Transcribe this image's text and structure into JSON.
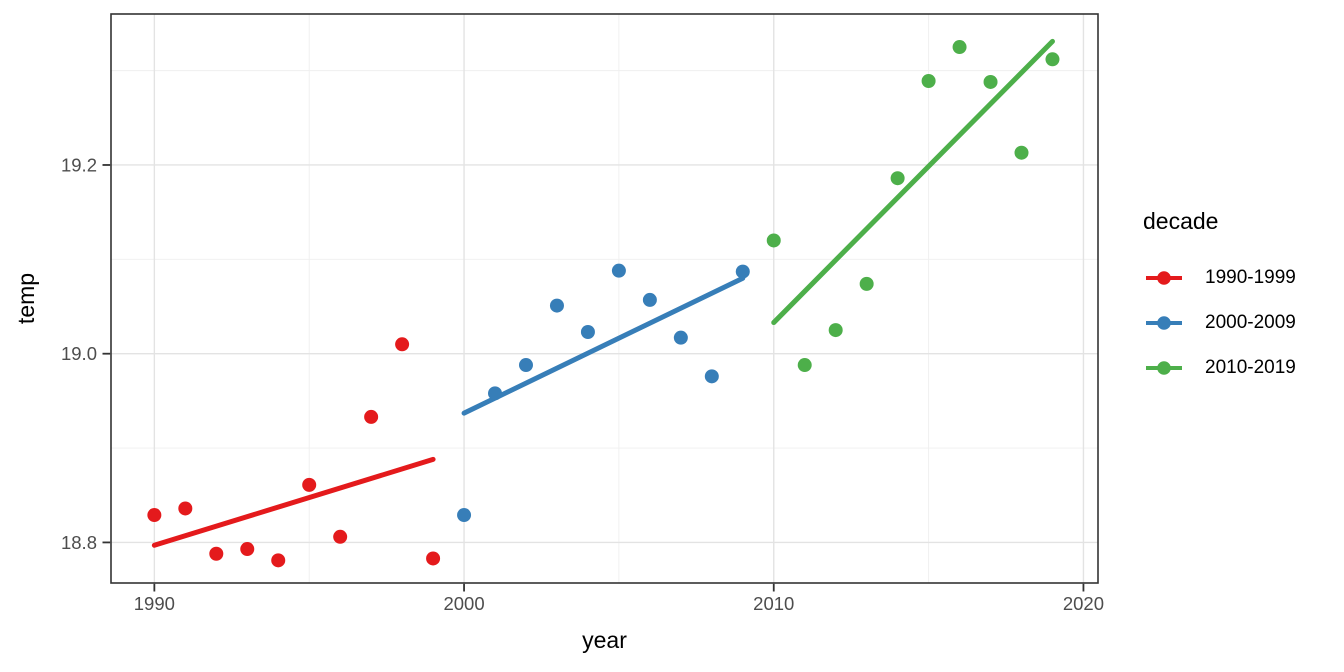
{
  "chart_data": {
    "type": "scatter",
    "title": "",
    "xlabel": "year",
    "ylabel": "temp",
    "x_major_ticks": [
      1990,
      2000,
      2010,
      2020
    ],
    "x_minor_gridlines": [
      1995,
      2005,
      2015
    ],
    "y_major_ticks": [
      18.8,
      19.0,
      19.2
    ],
    "y_minor_gridlines": [
      18.9,
      19.1,
      19.3
    ],
    "xlim": [
      1988.6,
      2020.47
    ],
    "ylim": [
      18.757,
      19.36
    ],
    "grid": true,
    "legend_position": "right",
    "legend": {
      "title": "decade"
    },
    "series": [
      {
        "name": "1990-1999",
        "color": "#E41A1C",
        "x": [
          1990,
          1991,
          1992,
          1993,
          1994,
          1995,
          1996,
          1997,
          1998,
          1999
        ],
        "y": [
          18.829,
          18.836,
          18.788,
          18.793,
          18.781,
          18.861,
          18.806,
          18.933,
          19.01,
          18.783
        ],
        "trend": {
          "x1": 1990,
          "y1": 18.797,
          "x2": 1999,
          "y2": 18.888
        }
      },
      {
        "name": "2000-2009",
        "color": "#377EB8",
        "x": [
          2000,
          2001,
          2002,
          2003,
          2004,
          2005,
          2006,
          2007,
          2008,
          2009
        ],
        "y": [
          18.829,
          18.958,
          18.988,
          19.051,
          19.023,
          19.088,
          19.057,
          19.017,
          18.976,
          19.087
        ],
        "trend": {
          "x1": 2000,
          "y1": 18.937,
          "x2": 2009,
          "y2": 19.08
        }
      },
      {
        "name": "2010-2019",
        "color": "#4DAF4A",
        "x": [
          2010,
          2011,
          2012,
          2013,
          2014,
          2015,
          2016,
          2017,
          2018,
          2019
        ],
        "y": [
          19.12,
          18.988,
          19.025,
          19.074,
          19.186,
          19.289,
          19.325,
          19.288,
          19.213,
          19.312
        ],
        "trend": {
          "x1": 2010,
          "y1": 19.033,
          "x2": 2019,
          "y2": 19.331
        }
      }
    ],
    "style": {
      "background": "#FFFFFF",
      "panel_border": "#333333",
      "grid_major": "#E3E3E3",
      "grid_minor": "#EFEFEF",
      "tick_color": "#333333",
      "tick_label_color": "#4D4D4D",
      "axis_title_color": "#000000",
      "point_radius": 7,
      "trend_width": 5
    }
  }
}
